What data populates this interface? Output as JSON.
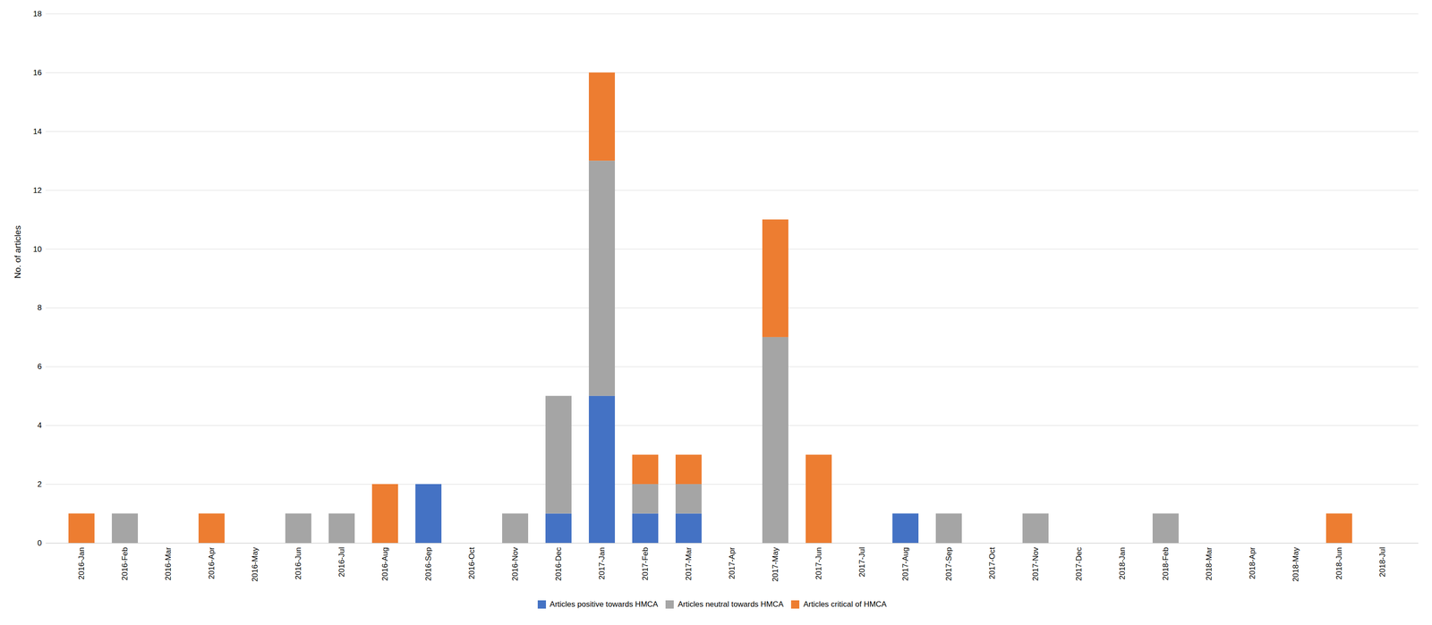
{
  "chart_data": {
    "type": "bar",
    "stacked": true,
    "categories": [
      "2016-Jan",
      "2016-Feb",
      "2016-Mar",
      "2016-Apr",
      "2016-May",
      "2016-Jun",
      "2016-Jul",
      "2016-Aug",
      "2016-Sep",
      "2016-Oct",
      "2016-Nov",
      "2016-Dec",
      "2017-Jan",
      "2017-Feb",
      "2017-Mar",
      "2017-Apr",
      "2017-May",
      "2017-Jun",
      "2017-Jul",
      "2017-Aug",
      "2017-Sep",
      "2017-Oct",
      "2017-Nov",
      "2017-Dec",
      "2018-Jan",
      "2018-Feb",
      "2018-Mar",
      "2018-Apr",
      "2018-May",
      "2018-Jun",
      "2018-Jul"
    ],
    "series": [
      {
        "name": "Articles positive towards HMCA",
        "color": "#4472C4",
        "values": [
          0,
          0,
          0,
          0,
          0,
          0,
          0,
          0,
          2,
          0,
          0,
          1,
          5,
          1,
          1,
          0,
          0,
          0,
          0,
          1,
          0,
          0,
          0,
          0,
          0,
          0,
          0,
          0,
          0,
          0,
          0
        ]
      },
      {
        "name": "Articles neutral towards HMCA",
        "color": "#A5A5A5",
        "values": [
          0,
          1,
          0,
          0,
          0,
          1,
          1,
          0,
          0,
          0,
          1,
          4,
          8,
          1,
          1,
          0,
          7,
          0,
          0,
          0,
          1,
          0,
          1,
          0,
          0,
          1,
          0,
          0,
          0,
          0,
          0
        ]
      },
      {
        "name": "Articles critical of HMCA",
        "color": "#ED7D31",
        "values": [
          1,
          0,
          0,
          1,
          0,
          0,
          0,
          2,
          0,
          0,
          0,
          0,
          3,
          1,
          1,
          0,
          4,
          3,
          0,
          0,
          0,
          0,
          0,
          0,
          0,
          0,
          0,
          0,
          0,
          1,
          0
        ]
      }
    ],
    "ylabel": "No. of articles",
    "ylim": [
      0,
      18
    ],
    "yticks": [
      0,
      2,
      4,
      6,
      8,
      10,
      12,
      14,
      16,
      18
    ],
    "grid": true,
    "legend": "bottom"
  }
}
